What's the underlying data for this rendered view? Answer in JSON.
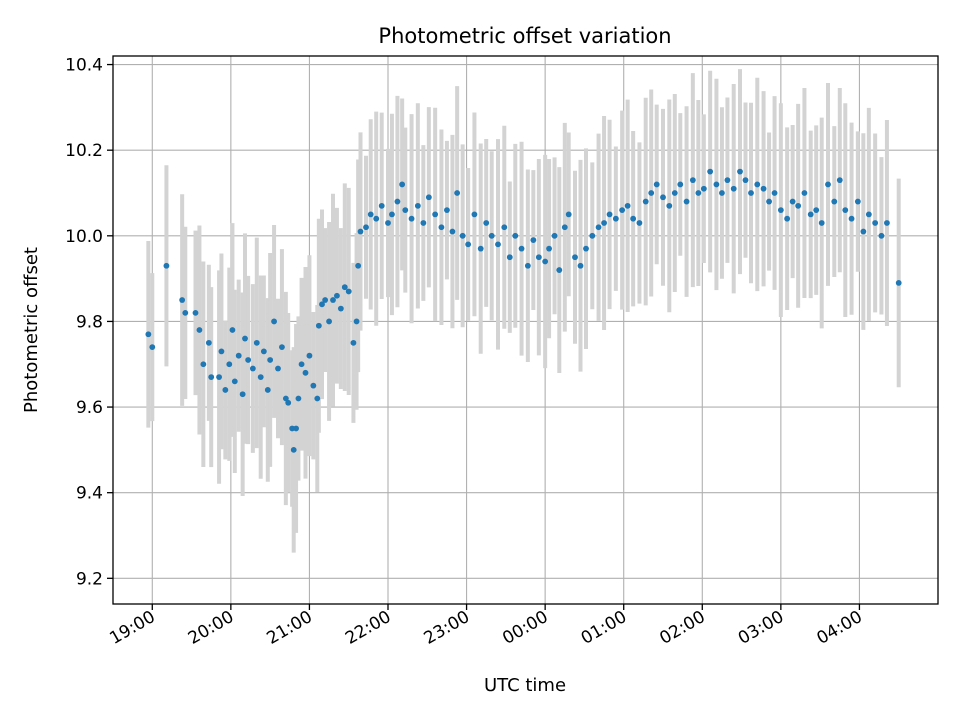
{
  "chart_data": {
    "type": "scatter",
    "title": "Photometric offset variation",
    "xlabel": "UTC time",
    "ylabel": "Photometric offset",
    "x_unit": "hours since 19:00 UTC",
    "xlim": [
      -0.5,
      10
    ],
    "ylim": [
      9.14,
      10.42
    ],
    "grid": true,
    "colors": {
      "points": "#1f77b4",
      "errorbars": "#d3d3d3",
      "grid": "#b0b0b0"
    },
    "x_ticks": [
      {
        "value": 0,
        "label": "19:00"
      },
      {
        "value": 1,
        "label": "20:00"
      },
      {
        "value": 2,
        "label": "21:00"
      },
      {
        "value": 3,
        "label": "22:00"
      },
      {
        "value": 4,
        "label": "23:00"
      },
      {
        "value": 5,
        "label": "00:00"
      },
      {
        "value": 6,
        "label": "01:00"
      },
      {
        "value": 7,
        "label": "02:00"
      },
      {
        "value": 8,
        "label": "03:00"
      },
      {
        "value": 9,
        "label": "04:00"
      }
    ],
    "y_ticks": [
      {
        "value": 9.2,
        "label": "9.2"
      },
      {
        "value": 9.4,
        "label": "9.4"
      },
      {
        "value": 9.6,
        "label": "9.6"
      },
      {
        "value": 9.8,
        "label": "9.8"
      },
      {
        "value": 10.0,
        "label": "10.0"
      },
      {
        "value": 10.2,
        "label": "10.2"
      },
      {
        "value": 10.4,
        "label": "10.4"
      }
    ],
    "series": [
      {
        "name": "Photometric offset",
        "marker": "point",
        "error_band_note": "each point has a grey vertical error bar; half-width ~0.15-0.30",
        "points": [
          [
            -0.05,
            9.77
          ],
          [
            0.0,
            9.74
          ],
          [
            0.18,
            9.93
          ],
          [
            0.38,
            9.85
          ],
          [
            0.42,
            9.82
          ],
          [
            0.55,
            9.82
          ],
          [
            0.6,
            9.78
          ],
          [
            0.65,
            9.7
          ],
          [
            0.72,
            9.75
          ],
          [
            0.75,
            9.67
          ],
          [
            0.85,
            9.67
          ],
          [
            0.88,
            9.73
          ],
          [
            0.93,
            9.64
          ],
          [
            0.98,
            9.7
          ],
          [
            1.02,
            9.78
          ],
          [
            1.05,
            9.66
          ],
          [
            1.1,
            9.72
          ],
          [
            1.15,
            9.63
          ],
          [
            1.18,
            9.76
          ],
          [
            1.22,
            9.71
          ],
          [
            1.28,
            9.69
          ],
          [
            1.33,
            9.75
          ],
          [
            1.38,
            9.67
          ],
          [
            1.42,
            9.73
          ],
          [
            1.47,
            9.64
          ],
          [
            1.5,
            9.71
          ],
          [
            1.55,
            9.8
          ],
          [
            1.6,
            9.69
          ],
          [
            1.65,
            9.74
          ],
          [
            1.7,
            9.62
          ],
          [
            1.73,
            9.61
          ],
          [
            1.78,
            9.55
          ],
          [
            1.8,
            9.5
          ],
          [
            1.83,
            9.55
          ],
          [
            1.86,
            9.62
          ],
          [
            1.9,
            9.7
          ],
          [
            1.95,
            9.68
          ],
          [
            2.0,
            9.72
          ],
          [
            2.05,
            9.65
          ],
          [
            2.1,
            9.62
          ],
          [
            2.12,
            9.79
          ],
          [
            2.16,
            9.84
          ],
          [
            2.2,
            9.85
          ],
          [
            2.25,
            9.8
          ],
          [
            2.3,
            9.85
          ],
          [
            2.35,
            9.86
          ],
          [
            2.4,
            9.83
          ],
          [
            2.45,
            9.88
          ],
          [
            2.5,
            9.87
          ],
          [
            2.56,
            9.75
          ],
          [
            2.6,
            9.8
          ],
          [
            2.62,
            9.93
          ],
          [
            2.65,
            10.01
          ],
          [
            2.72,
            10.02
          ],
          [
            2.78,
            10.05
          ],
          [
            2.85,
            10.04
          ],
          [
            2.92,
            10.07
          ],
          [
            3.0,
            10.03
          ],
          [
            3.05,
            10.05
          ],
          [
            3.12,
            10.08
          ],
          [
            3.18,
            10.12
          ],
          [
            3.22,
            10.06
          ],
          [
            3.3,
            10.04
          ],
          [
            3.38,
            10.07
          ],
          [
            3.45,
            10.03
          ],
          [
            3.52,
            10.09
          ],
          [
            3.6,
            10.05
          ],
          [
            3.68,
            10.02
          ],
          [
            3.75,
            10.06
          ],
          [
            3.82,
            10.01
          ],
          [
            3.88,
            10.1
          ],
          [
            3.95,
            10.0
          ],
          [
            4.02,
            9.98
          ],
          [
            4.1,
            10.05
          ],
          [
            4.18,
            9.97
          ],
          [
            4.25,
            10.03
          ],
          [
            4.32,
            10.0
          ],
          [
            4.4,
            9.98
          ],
          [
            4.48,
            10.02
          ],
          [
            4.55,
            9.95
          ],
          [
            4.62,
            10.0
          ],
          [
            4.7,
            9.97
          ],
          [
            4.78,
            9.93
          ],
          [
            4.85,
            9.99
          ],
          [
            4.92,
            9.95
          ],
          [
            5.0,
            9.94
          ],
          [
            5.05,
            9.97
          ],
          [
            5.12,
            10.0
          ],
          [
            5.18,
            9.92
          ],
          [
            5.25,
            10.02
          ],
          [
            5.3,
            10.05
          ],
          [
            5.38,
            9.95
          ],
          [
            5.45,
            9.93
          ],
          [
            5.52,
            9.97
          ],
          [
            5.6,
            10.0
          ],
          [
            5.68,
            10.02
          ],
          [
            5.75,
            10.03
          ],
          [
            5.82,
            10.05
          ],
          [
            5.9,
            10.04
          ],
          [
            5.98,
            10.06
          ],
          [
            6.05,
            10.07
          ],
          [
            6.12,
            10.04
          ],
          [
            6.2,
            10.03
          ],
          [
            6.28,
            10.08
          ],
          [
            6.35,
            10.1
          ],
          [
            6.42,
            10.12
          ],
          [
            6.5,
            10.09
          ],
          [
            6.58,
            10.07
          ],
          [
            6.65,
            10.1
          ],
          [
            6.72,
            10.12
          ],
          [
            6.8,
            10.08
          ],
          [
            6.88,
            10.13
          ],
          [
            6.95,
            10.1
          ],
          [
            7.02,
            10.11
          ],
          [
            7.1,
            10.15
          ],
          [
            7.18,
            10.12
          ],
          [
            7.25,
            10.1
          ],
          [
            7.32,
            10.13
          ],
          [
            7.4,
            10.11
          ],
          [
            7.48,
            10.15
          ],
          [
            7.55,
            10.13
          ],
          [
            7.62,
            10.1
          ],
          [
            7.7,
            10.12
          ],
          [
            7.78,
            10.11
          ],
          [
            7.85,
            10.08
          ],
          [
            7.92,
            10.1
          ],
          [
            8.0,
            10.06
          ],
          [
            8.08,
            10.04
          ],
          [
            8.15,
            10.08
          ],
          [
            8.22,
            10.07
          ],
          [
            8.3,
            10.1
          ],
          [
            8.38,
            10.05
          ],
          [
            8.45,
            10.06
          ],
          [
            8.52,
            10.03
          ],
          [
            8.6,
            10.12
          ],
          [
            8.68,
            10.08
          ],
          [
            8.75,
            10.13
          ],
          [
            8.82,
            10.06
          ],
          [
            8.9,
            10.04
          ],
          [
            8.98,
            10.08
          ],
          [
            9.05,
            10.01
          ],
          [
            9.12,
            10.05
          ],
          [
            9.2,
            10.03
          ],
          [
            9.28,
            10.0
          ],
          [
            9.35,
            10.03
          ],
          [
            9.5,
            9.89
          ]
        ]
      }
    ]
  }
}
